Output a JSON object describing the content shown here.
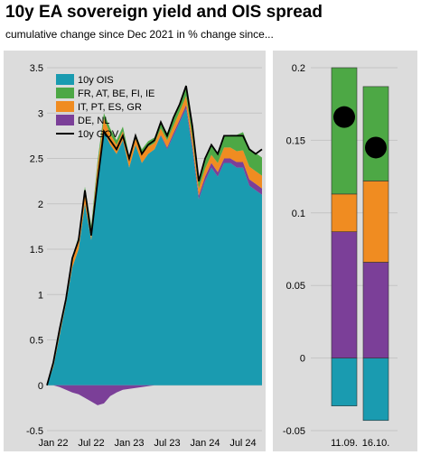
{
  "header": {
    "title": "10y EA sovereign yield and OIS spread",
    "subtitle": "cumulative change since Dec 2021 in % change since..."
  },
  "colors": {
    "ois": "#1a9bb0",
    "core": "#4da845",
    "periphery": "#f08c21",
    "anchor": "#7b3f98",
    "gov": "#000000",
    "panel": "#dcdcdc"
  },
  "chart_data": [
    {
      "type": "area",
      "title": "",
      "xlabel": "",
      "ylabel": "",
      "ylim": [
        -0.5,
        3.5
      ],
      "y_ticks": [
        "3.5",
        "3",
        "2.5",
        "2",
        "1.5",
        "1",
        "0.5",
        "0",
        "-0.5"
      ],
      "x_ticks": [
        "Jan 22",
        "Jul 22",
        "Jan 23",
        "Jul 23",
        "Jan 24",
        "Jul 24"
      ],
      "legend": {
        "placement": "top-left",
        "entries": [
          "10y OIS",
          "FR, AT, BE, FI, IE",
          "IT, PT, ES, GR",
          "DE, NL",
          "10y GOV"
        ]
      },
      "x_dates": [
        "2021-12",
        "2022-01",
        "2022-02",
        "2022-03",
        "2022-04",
        "2022-05",
        "2022-06",
        "2022-07",
        "2022-08",
        "2022-09",
        "2022-10",
        "2022-11",
        "2022-12",
        "2023-01",
        "2023-02",
        "2023-03",
        "2023-04",
        "2023-05",
        "2023-06",
        "2023-07",
        "2023-08",
        "2023-09",
        "2023-10",
        "2023-11",
        "2023-12",
        "2024-01",
        "2024-02",
        "2024-03",
        "2024-04",
        "2024-05",
        "2024-06",
        "2024-07",
        "2024-08",
        "2024-09",
        "2024-10"
      ],
      "series": [
        {
          "name": "10y OIS",
          "values": [
            0.0,
            0.2,
            0.55,
            0.9,
            1.3,
            1.5,
            2.0,
            1.6,
            2.3,
            2.8,
            2.65,
            2.55,
            2.7,
            2.4,
            2.65,
            2.45,
            2.55,
            2.6,
            2.75,
            2.6,
            2.75,
            2.9,
            3.05,
            2.6,
            2.05,
            2.25,
            2.4,
            2.3,
            2.45,
            2.45,
            2.4,
            2.4,
            2.2,
            2.15,
            2.1
          ]
        },
        {
          "name": "FR, AT, BE, FI, IE",
          "values": [
            0.0,
            0.02,
            0.03,
            0.02,
            0.03,
            0.04,
            0.05,
            0.04,
            0.05,
            0.06,
            0.06,
            0.05,
            0.05,
            0.05,
            0.05,
            0.06,
            0.06,
            0.06,
            0.07,
            0.08,
            0.09,
            0.1,
            0.12,
            0.1,
            0.09,
            0.1,
            0.1,
            0.11,
            0.12,
            0.14,
            0.18,
            0.2,
            0.2,
            0.2,
            0.2
          ]
        },
        {
          "name": "IT, PT, ES, GR",
          "values": [
            0.0,
            0.03,
            0.06,
            0.05,
            0.08,
            0.1,
            0.14,
            0.12,
            0.12,
            0.14,
            0.12,
            0.1,
            0.1,
            0.08,
            0.07,
            0.09,
            0.08,
            0.07,
            0.07,
            0.08,
            0.08,
            0.09,
            0.1,
            0.09,
            0.08,
            0.09,
            0.09,
            0.1,
            0.12,
            0.12,
            0.12,
            0.13,
            0.14,
            0.14,
            0.14
          ]
        },
        {
          "name": "DE, NL",
          "values": [
            0.0,
            0.0,
            -0.02,
            -0.05,
            -0.08,
            -0.1,
            -0.14,
            -0.18,
            -0.22,
            -0.2,
            -0.12,
            -0.08,
            -0.05,
            -0.04,
            -0.03,
            -0.02,
            -0.01,
            0.0,
            0.01,
            0.02,
            0.03,
            0.03,
            0.04,
            0.04,
            0.04,
            0.05,
            0.05,
            0.05,
            0.05,
            0.05,
            0.06,
            0.06,
            0.07,
            0.07,
            0.07
          ]
        },
        {
          "name": "10y GOV",
          "values": [
            0.0,
            0.25,
            0.62,
            0.95,
            1.4,
            1.6,
            2.15,
            1.65,
            2.25,
            2.8,
            2.7,
            2.6,
            2.75,
            2.5,
            2.75,
            2.55,
            2.65,
            2.7,
            2.9,
            2.75,
            2.95,
            3.1,
            3.3,
            2.85,
            2.25,
            2.5,
            2.65,
            2.55,
            2.75,
            2.75,
            2.75,
            2.75,
            2.6,
            2.55,
            2.6
          ]
        }
      ]
    },
    {
      "type": "bar",
      "stacked": true,
      "ylim": [
        -0.05,
        0.2
      ],
      "y_ticks": [
        "0.2",
        "0.15",
        "0.1",
        "0.05",
        "0",
        "-0.05"
      ],
      "categories": [
        "11.09.",
        "16.10."
      ],
      "series": [
        {
          "name": "10y OIS",
          "values": [
            -0.033,
            -0.043
          ]
        },
        {
          "name": "DE, NL",
          "values": [
            0.087,
            0.066
          ]
        },
        {
          "name": "IT, PT, ES, GR",
          "values": [
            0.026,
            0.056
          ]
        },
        {
          "name": "FR, AT, BE, FI, IE",
          "values": [
            0.087,
            0.065
          ]
        }
      ],
      "markers": {
        "name": "10y GOV",
        "values": [
          0.166,
          0.145
        ]
      }
    }
  ]
}
